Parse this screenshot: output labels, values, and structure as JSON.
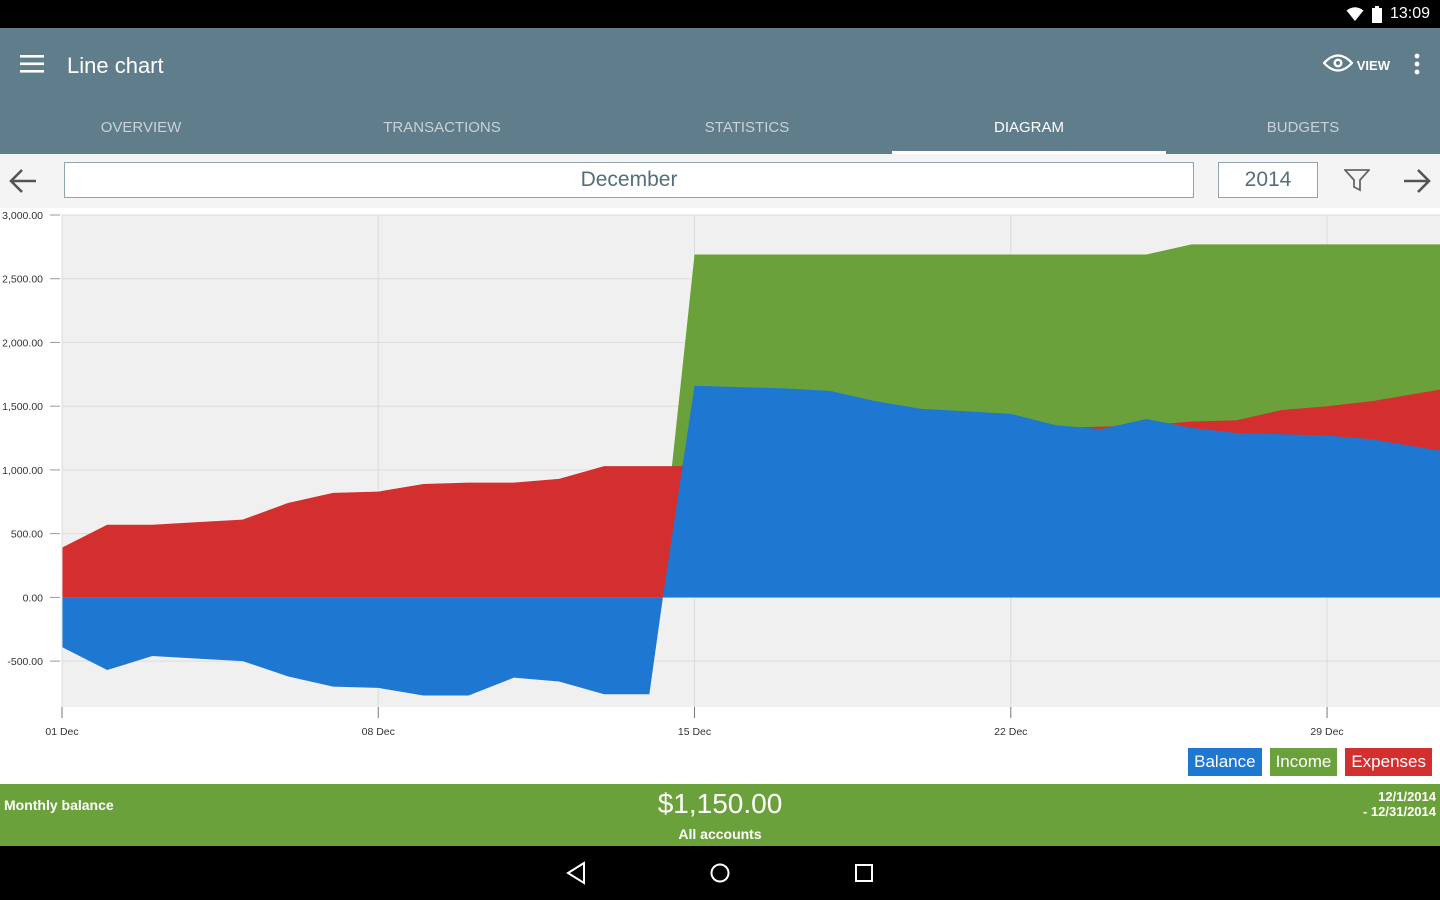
{
  "status_bar": {
    "time": "13:09"
  },
  "app_bar": {
    "title": "Line chart",
    "view_label": "VIEW"
  },
  "tabs": [
    {
      "label": "OVERVIEW"
    },
    {
      "label": "TRANSACTIONS"
    },
    {
      "label": "STATISTICS"
    },
    {
      "label": "DIAGRAM"
    },
    {
      "label": "BUDGETS"
    }
  ],
  "period": {
    "month": "December",
    "year": "2014"
  },
  "colors": {
    "appbar": "#607d8b",
    "balance": "#1e78d2",
    "income": "#6ba13a",
    "expenses": "#d32f2f"
  },
  "chart_data": {
    "type": "area",
    "xlabel": "",
    "ylabel": "",
    "ylim": [
      -860,
      3000
    ],
    "xlim": [
      1,
      31.5
    ],
    "y_ticks": [
      "3,000.00",
      "2,500.00",
      "2,000.00",
      "1,500.00",
      "1,000.00",
      "500.00",
      "0.00",
      "-500.00"
    ],
    "y_tick_values": [
      3000,
      2500,
      2000,
      1500,
      1000,
      500,
      0,
      -500
    ],
    "x_ticks": [
      "01 Dec",
      "08 Dec",
      "15 Dec",
      "22 Dec",
      "29 Dec"
    ],
    "x_tick_values": [
      1,
      8,
      15,
      22,
      29
    ],
    "grid": true,
    "legend": "bottom-right",
    "series": [
      {
        "name": "Income",
        "color": "#6ba13a",
        "x": [
          14.5,
          15,
          16,
          17,
          18,
          19,
          20,
          21,
          22,
          23,
          24,
          25,
          26,
          27,
          28,
          29,
          30,
          31.5
        ],
        "values": [
          1030,
          2690,
          2690,
          2690,
          2690,
          2690,
          2690,
          2690,
          2690,
          2690,
          2690,
          2690,
          2770,
          2770,
          2770,
          2770,
          2770,
          2770
        ]
      },
      {
        "name": "Expenses",
        "color": "#d32f2f",
        "x": [
          1,
          2,
          3,
          4,
          5,
          6,
          7,
          8,
          9,
          10,
          11,
          12,
          13,
          14,
          14.7,
          15,
          16,
          17,
          18,
          19,
          20,
          21,
          22,
          23,
          24,
          25,
          26,
          27,
          28,
          29,
          30,
          31.5
        ],
        "values": [
          390,
          570,
          570,
          590,
          610,
          740,
          820,
          830,
          890,
          900,
          900,
          930,
          1030,
          1030,
          1030,
          1100,
          1150,
          1200,
          1220,
          1250,
          1280,
          1300,
          1320,
          1330,
          1340,
          1350,
          1380,
          1390,
          1470,
          1500,
          1540,
          1630
        ]
      },
      {
        "name": "Balance",
        "color": "#1e78d2",
        "x": [
          1,
          2,
          3,
          4,
          5,
          6,
          7,
          8,
          9,
          10,
          11,
          12,
          13,
          14,
          14.3,
          15,
          16,
          17,
          18,
          19,
          20,
          21,
          22,
          23,
          24,
          25,
          26,
          27,
          28,
          29,
          30,
          31.5
        ],
        "values": [
          -390,
          -570,
          -460,
          -480,
          -500,
          -620,
          -700,
          -710,
          -770,
          -770,
          -630,
          -660,
          -760,
          -760,
          0,
          1660,
          1650,
          1640,
          1620,
          1540,
          1480,
          1460,
          1440,
          1350,
          1320,
          1400,
          1330,
          1290,
          1280,
          1270,
          1240,
          1150
        ]
      }
    ]
  },
  "legend": [
    {
      "label": "Balance",
      "color": "#1e78d2"
    },
    {
      "label": "Income",
      "color": "#6ba13a"
    },
    {
      "label": "Expenses",
      "color": "#d32f2f"
    }
  ],
  "footer": {
    "label": "Monthly balance",
    "amount": "$1,150.00",
    "accounts": "All accounts",
    "range_start": "12/1/2014",
    "range_end": "- 12/31/2014"
  }
}
